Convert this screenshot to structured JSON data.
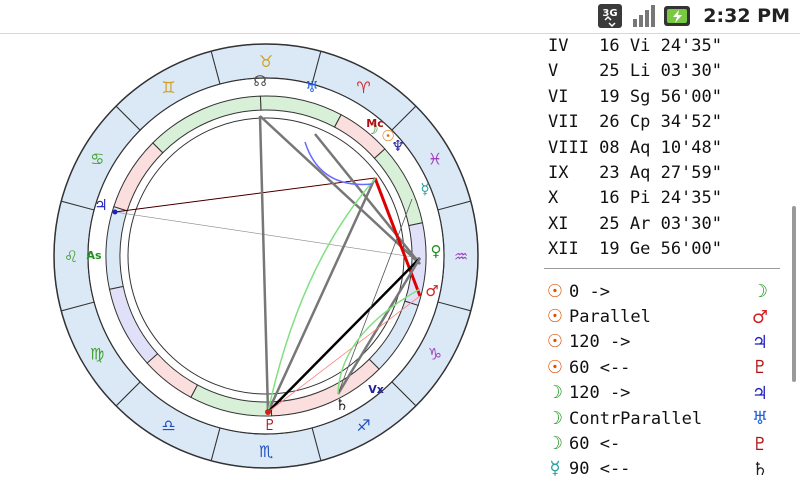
{
  "status_bar": {
    "network": "3G",
    "time": "2:32 PM",
    "icons": [
      "3g-icon",
      "signal-strength-icon",
      "battery-charging-icon"
    ]
  },
  "chart": {
    "signs": [
      {
        "glyph": "♉",
        "color": "#d2a020"
      },
      {
        "glyph": "♈",
        "color": "#d03030"
      },
      {
        "glyph": "♓",
        "color": "#a040c0"
      },
      {
        "glyph": "♒",
        "color": "#a040c0"
      },
      {
        "glyph": "♑",
        "color": "#a040c0"
      },
      {
        "glyph": "♐",
        "color": "#2050c0"
      },
      {
        "glyph": "♏",
        "color": "#2050c0"
      },
      {
        "glyph": "♎",
        "color": "#2050c0"
      },
      {
        "glyph": "♍",
        "color": "#40a030"
      },
      {
        "glyph": "♌",
        "color": "#40a030"
      },
      {
        "glyph": "♋",
        "color": "#40a030"
      },
      {
        "glyph": "♊",
        "color": "#d2a020"
      }
    ],
    "labels": {
      "ascendant": "As",
      "midheaven": "Mc",
      "vertex": "Vx"
    },
    "planets": [
      {
        "name": "sun",
        "glyph": "☉",
        "color": "#e07000"
      },
      {
        "name": "moon",
        "glyph": "☽",
        "color": "#209020"
      },
      {
        "name": "mercury",
        "glyph": "☿",
        "color": "#20a0a0"
      },
      {
        "name": "venus",
        "glyph": "♀",
        "color": "#209020"
      },
      {
        "name": "mars",
        "glyph": "♂",
        "color": "#d02020"
      },
      {
        "name": "jupiter",
        "glyph": "♃",
        "color": "#2020c0"
      },
      {
        "name": "saturn",
        "glyph": "♄",
        "color": "#202020"
      },
      {
        "name": "uranus",
        "glyph": "♅",
        "color": "#2060e0"
      },
      {
        "name": "neptune",
        "glyph": "♆",
        "color": "#2020a0"
      },
      {
        "name": "pluto",
        "glyph": "♇",
        "color": "#b01010"
      },
      {
        "name": "node",
        "glyph": "☊",
        "color": "#505050"
      }
    ]
  },
  "houses": [
    "IV   16 Vi 24'35\"",
    "V    25 Li 03'30\"",
    "VI   19 Sg 56'00\"",
    "VII  26 Cp 34'52\"",
    "VIII 08 Aq 10'48\"",
    "IX   23 Aq 27'59\"",
    "X    16 Pi 24'35\"",
    "XI   25 Ar 03'30\"",
    "XII  19 Ge 56'00\""
  ],
  "aspects": [
    {
      "from_glyph": "☉",
      "from_color": "#e05000",
      "text": "0 ->",
      "to_glyph": "☽",
      "to_color": "#209020"
    },
    {
      "from_glyph": "☉",
      "from_color": "#e05000",
      "text": "Parallel",
      "to_glyph": "♂",
      "to_color": "#d02020"
    },
    {
      "from_glyph": "☉",
      "from_color": "#e05000",
      "text": "120 ->",
      "to_glyph": "♃",
      "to_color": "#2020c0"
    },
    {
      "from_glyph": "☉",
      "from_color": "#e05000",
      "text": "60 <--",
      "to_glyph": "♇",
      "to_color": "#b01010"
    },
    {
      "from_glyph": "☽",
      "from_color": "#209020",
      "text": "120 ->",
      "to_glyph": "♃",
      "to_color": "#2020c0"
    },
    {
      "from_glyph": "☽",
      "from_color": "#209020",
      "text": "ContrParallel",
      "to_glyph": "♅",
      "to_color": "#2060e0"
    },
    {
      "from_glyph": "☽",
      "from_color": "#209020",
      "text": "60 <-",
      "to_glyph": "♇",
      "to_color": "#b01010"
    },
    {
      "from_glyph": "☿",
      "from_color": "#20a0a0",
      "text": "90 <--",
      "to_glyph": "♄",
      "to_color": "#202020"
    }
  ]
}
